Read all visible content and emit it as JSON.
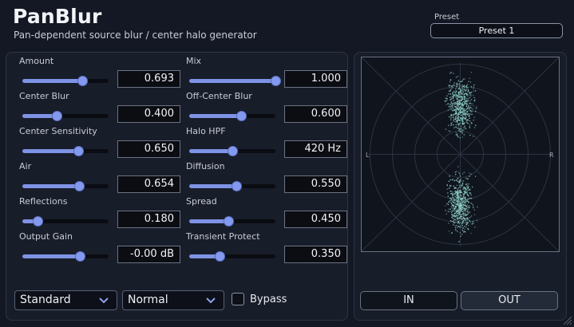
{
  "header": {
    "title": "PanBlur",
    "subtitle": "Pan-dependent source blur / center halo generator",
    "preset_label": "Preset",
    "preset_value": "Preset 1"
  },
  "params": {
    "left": [
      {
        "label": "Amount",
        "value": "0.693",
        "pos": 0.693
      },
      {
        "label": "Center Blur",
        "value": "0.400",
        "pos": 0.4
      },
      {
        "label": "Center Sensitivity",
        "value": "0.650",
        "pos": 0.65
      },
      {
        "label": "Air",
        "value": "0.654",
        "pos": 0.654
      },
      {
        "label": "Reflections",
        "value": "0.180",
        "pos": 0.18
      },
      {
        "label": "Output Gain",
        "value": "-0.00 dB",
        "pos": 0.67
      }
    ],
    "right": [
      {
        "label": "Mix",
        "value": "1.000",
        "pos": 1.0
      },
      {
        "label": "Off-Center Blur",
        "value": "0.600",
        "pos": 0.6
      },
      {
        "label": "Halo HPF",
        "value": "420 Hz",
        "pos": 0.5
      },
      {
        "label": "Diffusion",
        "value": "0.550",
        "pos": 0.55
      },
      {
        "label": "Spread",
        "value": "0.450",
        "pos": 0.45
      },
      {
        "label": "Transient Protect",
        "value": "0.350",
        "pos": 0.35
      }
    ]
  },
  "controls": {
    "mode_dropdown": "Standard",
    "quality_dropdown": "Normal",
    "bypass_label": "Bypass",
    "bypass_checked": false
  },
  "scope": {
    "left_label": "L",
    "right_label": "R"
  },
  "toggles": {
    "in_label": "IN",
    "out_label": "OUT",
    "active": "OUT"
  },
  "colors": {
    "accent": "#7f93e6",
    "scope_dots": "#8ed0c8",
    "background": "#141824"
  }
}
